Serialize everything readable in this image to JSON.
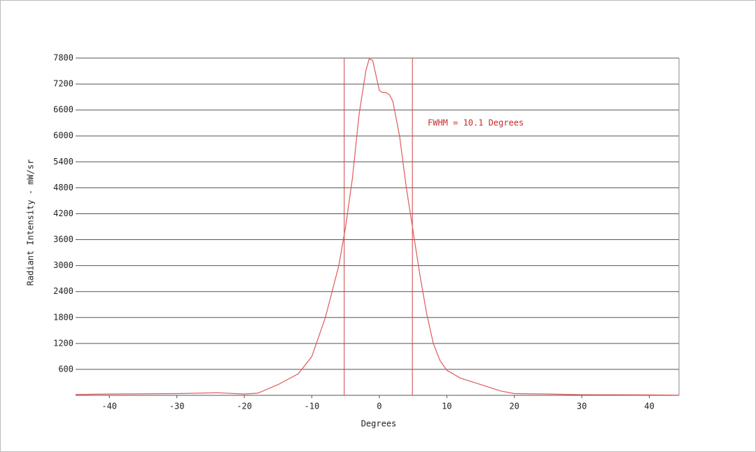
{
  "chart_data": {
    "type": "line",
    "annotation": "FWHM = 10.1 Degrees",
    "x_label": "Degrees",
    "y_label": "Radiant Intensity - mW/sr",
    "x": [
      -45,
      -40,
      -30,
      -24,
      -20,
      -18,
      -15,
      -12,
      -10,
      -8,
      -6,
      -5,
      -4,
      -3,
      -2,
      -1.5,
      -1,
      -0.5,
      0,
      0.5,
      1,
      1.5,
      2,
      3,
      4,
      5,
      6,
      7,
      8,
      9,
      10,
      12,
      15,
      18,
      20,
      25,
      30,
      40,
      44.4
    ],
    "values": [
      20,
      30,
      40,
      60,
      30,
      50,
      250,
      500,
      900,
      1800,
      3000,
      3900,
      5000,
      6500,
      7500,
      7780,
      7750,
      7400,
      7050,
      7000,
      7000,
      6950,
      6800,
      6000,
      4800,
      3800,
      2800,
      1900,
      1200,
      800,
      580,
      400,
      250,
      100,
      40,
      30,
      15,
      10,
      5
    ],
    "color": "#e05a5a",
    "vlines": [
      -5.2,
      4.9
    ],
    "vline_color": "#d04040",
    "annotation_color": "#cc2a2a",
    "xlim": [
      -45,
      44.4
    ],
    "ylim": [
      0,
      7800
    ],
    "xticks": [
      -40,
      -30,
      -20,
      -10,
      0,
      10,
      20,
      30,
      40
    ],
    "yticks": [
      600,
      1200,
      1800,
      2400,
      3000,
      3600,
      4200,
      4800,
      5400,
      6000,
      6600,
      7200,
      7800
    ],
    "grid": true
  }
}
